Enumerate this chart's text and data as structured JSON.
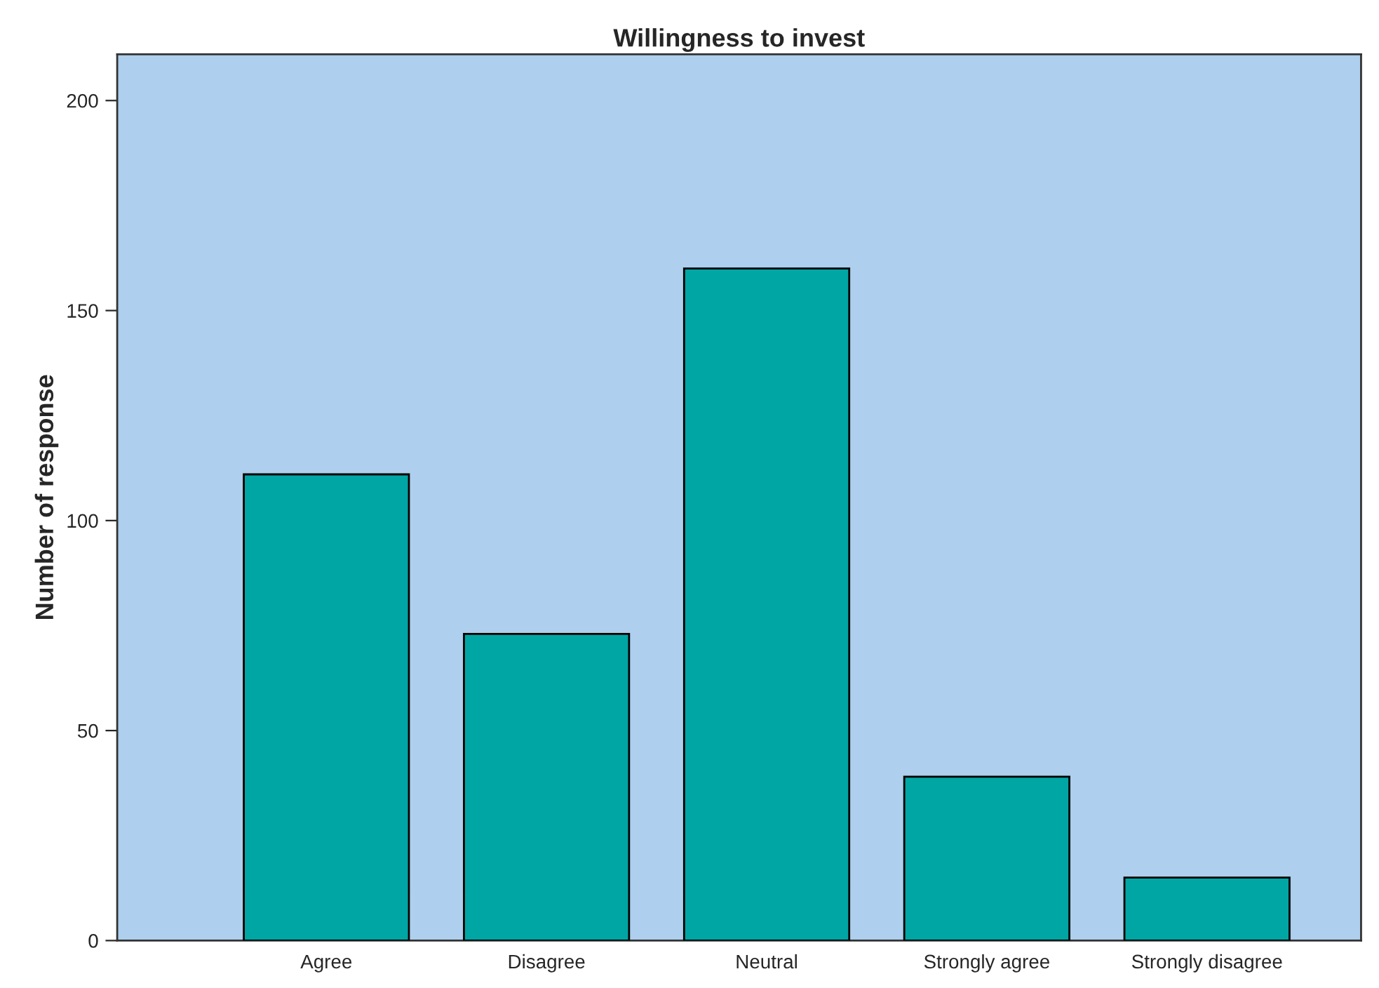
{
  "chart_data": {
    "type": "bar",
    "title": "Willingness to invest",
    "ylabel": "Number of response",
    "categories": [
      "Agree",
      "Disagree",
      "Neutral",
      "Strongly agree",
      "Strongly disagree"
    ],
    "values": [
      111,
      73,
      160,
      39,
      15
    ],
    "color": "#00a6a4",
    "ylim": [
      0,
      211
    ],
    "yticks": [
      0,
      50,
      100,
      150,
      200
    ],
    "grid": false,
    "legend": false
  }
}
